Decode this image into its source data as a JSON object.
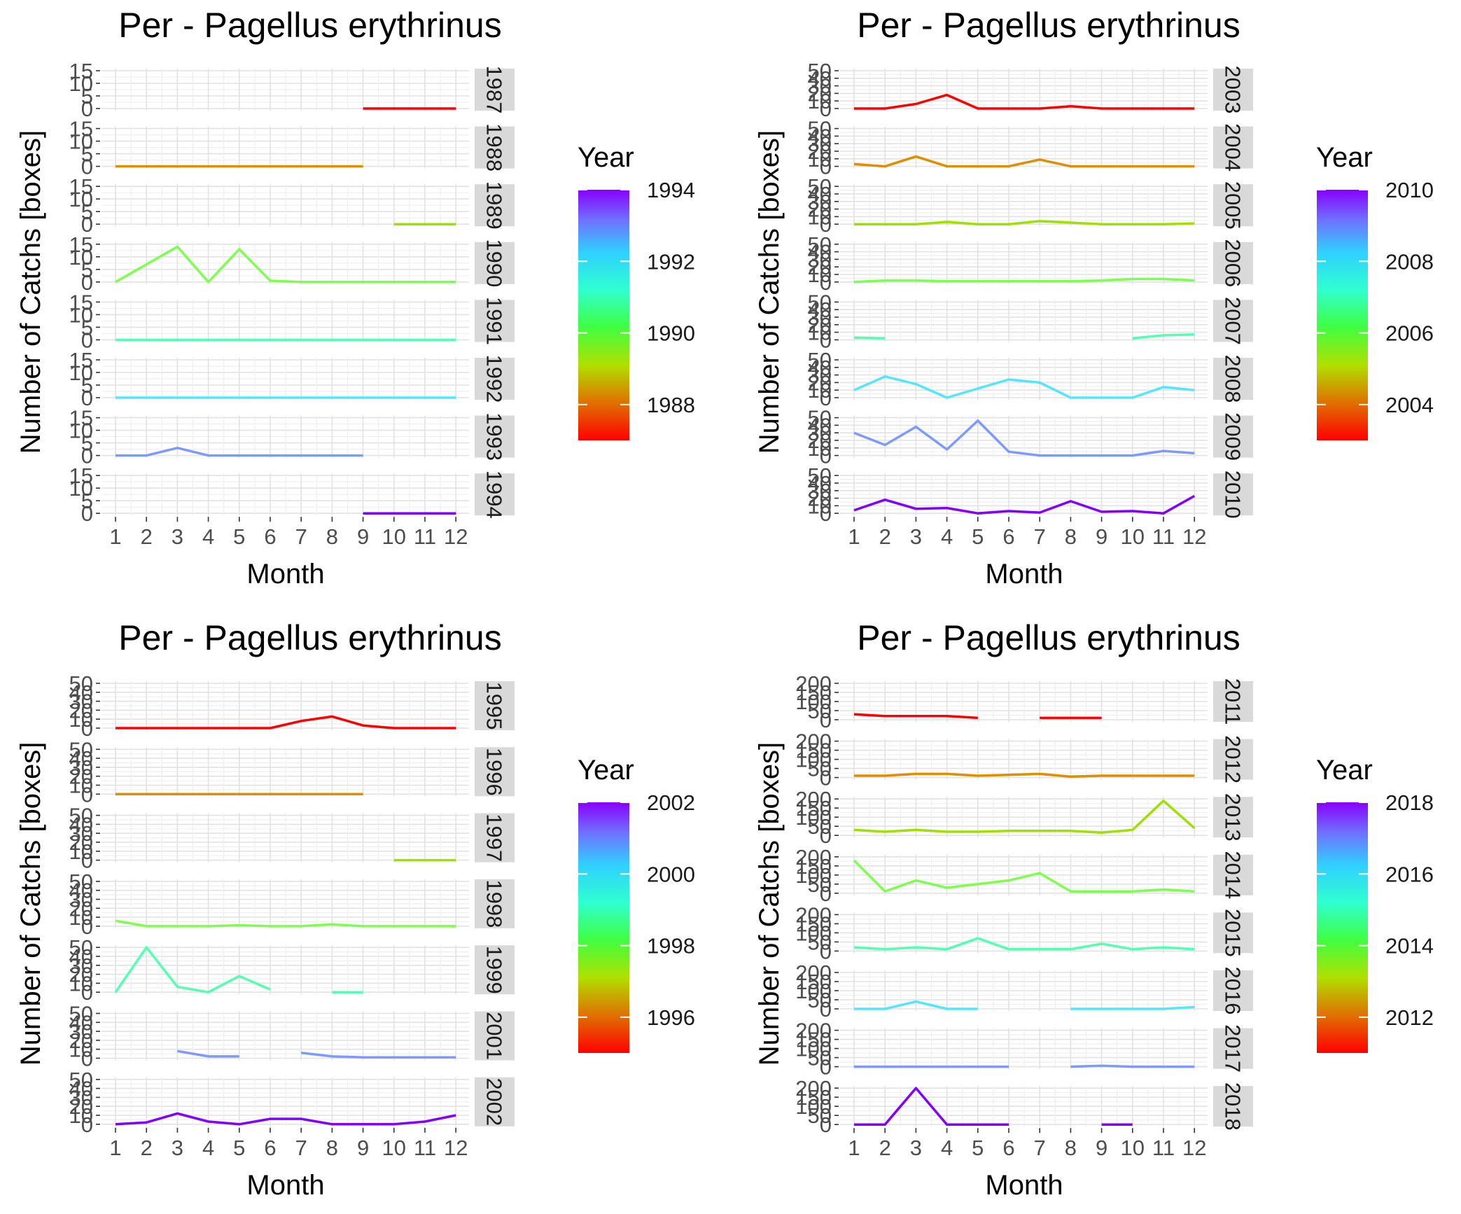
{
  "chart_data": [
    {
      "type": "line",
      "title": "Per - Pagellus erythrinus",
      "xlabel": "Month",
      "ylabel": "Number of Catchs [boxes]",
      "x": [
        1,
        2,
        3,
        4,
        5,
        6,
        7,
        8,
        9,
        10,
        11,
        12
      ],
      "xticks": [
        "1",
        "2",
        "3",
        "4",
        "5",
        "6",
        "7",
        "8",
        "9",
        "10",
        "11",
        "12"
      ],
      "yticks": [
        "0",
        "5",
        "10",
        "15"
      ],
      "ylim": [
        0,
        15
      ],
      "legend": {
        "title": "Year",
        "min": 1987,
        "max": 1994,
        "ticks": [
          "1988",
          "1990",
          "1992",
          "1994"
        ],
        "tick_values": [
          1988,
          1990,
          1992,
          1994
        ],
        "position": "right"
      },
      "series": [
        {
          "name": "1987",
          "color": "#ff0000",
          "values": [
            null,
            null,
            null,
            null,
            null,
            null,
            null,
            null,
            0,
            0,
            0,
            0
          ]
        },
        {
          "name": "1988",
          "color": "#de8f00",
          "values": [
            0,
            0,
            0,
            0,
            0,
            0,
            0,
            0,
            0,
            null,
            null,
            null
          ]
        },
        {
          "name": "1989",
          "color": "#a0e000",
          "values": [
            null,
            null,
            null,
            null,
            null,
            null,
            null,
            null,
            null,
            0,
            0,
            0
          ]
        },
        {
          "name": "1990",
          "color": "#7fff50",
          "values": [
            0,
            7,
            14,
            0,
            13,
            0.5,
            0,
            0,
            0,
            0,
            0,
            0
          ]
        },
        {
          "name": "1991",
          "color": "#55ffb4",
          "values": [
            0,
            0,
            0,
            0,
            0,
            0,
            0,
            0,
            0,
            0,
            0,
            0
          ]
        },
        {
          "name": "1992",
          "color": "#55e6ff",
          "values": [
            0,
            0,
            0,
            0,
            0,
            0,
            0,
            0,
            0,
            0,
            0,
            0
          ]
        },
        {
          "name": "1993",
          "color": "#7f9aff",
          "values": [
            0,
            0,
            3,
            0,
            0,
            0,
            0,
            0,
            0,
            null,
            null,
            null
          ]
        },
        {
          "name": "1994",
          "color": "#8200ff",
          "values": [
            null,
            null,
            null,
            null,
            null,
            null,
            null,
            null,
            0,
            0,
            0,
            0
          ]
        }
      ]
    },
    {
      "type": "line",
      "title": "Per - Pagellus erythrinus",
      "xlabel": "Month",
      "ylabel": "Number of Catchs [boxes]",
      "x": [
        1,
        2,
        3,
        4,
        5,
        6,
        7,
        8,
        9,
        10,
        11,
        12
      ],
      "xticks": [
        "1",
        "2",
        "3",
        "4",
        "5",
        "6",
        "7",
        "8",
        "9",
        "10",
        "11",
        "12"
      ],
      "yticks": [
        "0",
        "10",
        "20",
        "30",
        "40",
        "50"
      ],
      "ylim": [
        0,
        50
      ],
      "legend": {
        "title": "Year",
        "min": 2003,
        "max": 2010,
        "ticks": [
          "2004",
          "2006",
          "2008",
          "2010"
        ],
        "tick_values": [
          2004,
          2006,
          2008,
          2010
        ],
        "position": "right"
      },
      "series": [
        {
          "name": "2003",
          "color": "#ff0000",
          "values": [
            0,
            0,
            6,
            18,
            0,
            0,
            0,
            3,
            0,
            0,
            0,
            0
          ]
        },
        {
          "name": "2004",
          "color": "#de8f00",
          "values": [
            3,
            0,
            13,
            0,
            0,
            0,
            9,
            0,
            0,
            0,
            0,
            0
          ]
        },
        {
          "name": "2005",
          "color": "#a0e000",
          "values": [
            0,
            0,
            0,
            3,
            0,
            0,
            4,
            2,
            0,
            0,
            0,
            1
          ]
        },
        {
          "name": "2006",
          "color": "#7fff50",
          "values": [
            0,
            2,
            2,
            1,
            1,
            1,
            1,
            1,
            2,
            4,
            4,
            2
          ]
        },
        {
          "name": "2007",
          "color": "#55ffb4",
          "values": [
            3,
            2,
            null,
            null,
            null,
            null,
            null,
            null,
            null,
            2,
            6,
            7
          ]
        },
        {
          "name": "2008",
          "color": "#55e6ff",
          "values": [
            10,
            28,
            18,
            0,
            12,
            24,
            20,
            0,
            0,
            0,
            14,
            10
          ]
        },
        {
          "name": "2009",
          "color": "#7f9aff",
          "values": [
            30,
            14,
            38,
            8,
            46,
            5,
            0,
            0,
            0,
            0,
            6,
            3
          ]
        },
        {
          "name": "2010",
          "color": "#8200ff",
          "values": [
            4,
            18,
            6,
            7,
            0,
            3,
            1,
            16,
            2,
            3,
            0,
            23
          ]
        }
      ]
    },
    {
      "type": "line",
      "title": "Per - Pagellus erythrinus",
      "xlabel": "Month",
      "ylabel": "Number of Catchs [boxes]",
      "x": [
        1,
        2,
        3,
        4,
        5,
        6,
        7,
        8,
        9,
        10,
        11,
        12
      ],
      "xticks": [
        "1",
        "2",
        "3",
        "4",
        "5",
        "6",
        "7",
        "8",
        "9",
        "10",
        "11",
        "12"
      ],
      "yticks": [
        "0",
        "10",
        "20",
        "30",
        "40",
        "50"
      ],
      "ylim": [
        0,
        50
      ],
      "legend": {
        "title": "Year",
        "min": 1995,
        "max": 2002,
        "ticks": [
          "1996",
          "1998",
          "2000",
          "2002"
        ],
        "tick_values": [
          1996,
          1998,
          2000,
          2002
        ],
        "position": "right"
      },
      "series": [
        {
          "name": "1995",
          "color": "#ff0000",
          "values": [
            0,
            0,
            0,
            0,
            0,
            0,
            8,
            13,
            3,
            0,
            0,
            0
          ]
        },
        {
          "name": "1996",
          "color": "#de8f00",
          "values": [
            0,
            0,
            0,
            0,
            0,
            0,
            0,
            0,
            0,
            null,
            null,
            null
          ]
        },
        {
          "name": "1997",
          "color": "#a0e000",
          "values": [
            null,
            null,
            null,
            null,
            null,
            null,
            null,
            null,
            null,
            0,
            0,
            0
          ]
        },
        {
          "name": "1998",
          "color": "#7fff50",
          "values": [
            6,
            0,
            0,
            0,
            1,
            0,
            0,
            2,
            0,
            0,
            0,
            0
          ]
        },
        {
          "name": "1999",
          "color": "#55ffb4",
          "values": [
            0,
            50,
            6,
            0,
            18,
            3,
            null,
            0,
            0,
            null,
            null,
            null
          ]
        },
        {
          "name": "2001",
          "color": "#7f9aff",
          "values": [
            null,
            null,
            8,
            2,
            2,
            null,
            6,
            2,
            1,
            1,
            1,
            1
          ]
        },
        {
          "name": "2002",
          "color": "#8200ff",
          "values": [
            0,
            2,
            12,
            3,
            0,
            6,
            6,
            0,
            0,
            0,
            3,
            10
          ]
        }
      ]
    },
    {
      "type": "line",
      "title": "Per - Pagellus erythrinus",
      "xlabel": "Month",
      "ylabel": "Number of Catchs [boxes]",
      "x": [
        1,
        2,
        3,
        4,
        5,
        6,
        7,
        8,
        9,
        10,
        11,
        12
      ],
      "xticks": [
        "1",
        "2",
        "3",
        "4",
        "5",
        "6",
        "7",
        "8",
        "9",
        "10",
        "11",
        "12"
      ],
      "yticks": [
        "0",
        "50",
        "100",
        "150",
        "200"
      ],
      "ylim": [
        0,
        200
      ],
      "legend": {
        "title": "Year",
        "min": 2011,
        "max": 2018,
        "ticks": [
          "2012",
          "2014",
          "2016",
          "2018"
        ],
        "tick_values": [
          2012,
          2014,
          2016,
          2018
        ],
        "position": "right"
      },
      "series": [
        {
          "name": "2011",
          "color": "#ff0000",
          "values": [
            30,
            20,
            20,
            20,
            10,
            null,
            10,
            10,
            10,
            null,
            null,
            null
          ]
        },
        {
          "name": "2012",
          "color": "#de8f00",
          "values": [
            10,
            10,
            20,
            20,
            10,
            15,
            20,
            5,
            10,
            10,
            10,
            10
          ]
        },
        {
          "name": "2013",
          "color": "#a0e000",
          "values": [
            30,
            20,
            30,
            20,
            20,
            25,
            25,
            25,
            15,
            30,
            190,
            40
          ]
        },
        {
          "name": "2014",
          "color": "#7fff50",
          "values": [
            180,
            10,
            70,
            30,
            50,
            70,
            110,
            10,
            10,
            10,
            20,
            10
          ]
        },
        {
          "name": "2015",
          "color": "#55ffb4",
          "values": [
            20,
            10,
            20,
            10,
            70,
            10,
            10,
            10,
            40,
            10,
            20,
            10
          ]
        },
        {
          "name": "2016",
          "color": "#55e6ff",
          "values": [
            0,
            0,
            40,
            0,
            0,
            null,
            null,
            0,
            0,
            0,
            0,
            10
          ]
        },
        {
          "name": "2017",
          "color": "#7f9aff",
          "values": [
            0,
            0,
            0,
            0,
            0,
            0,
            null,
            0,
            5,
            0,
            0,
            0
          ]
        },
        {
          "name": "2018",
          "color": "#8200ff",
          "values": [
            0,
            0,
            200,
            0,
            0,
            0,
            null,
            null,
            0,
            0,
            null,
            null
          ]
        }
      ]
    }
  ]
}
